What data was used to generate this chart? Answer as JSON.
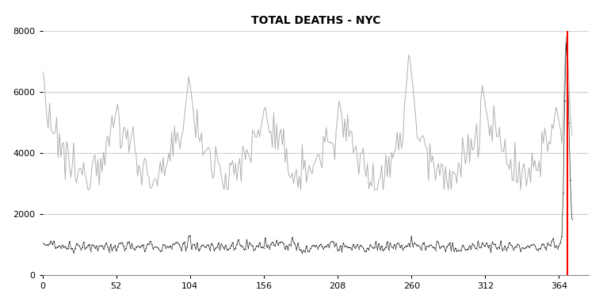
{
  "title": "TOTAL DEATHS - NYC",
  "title_fontsize": 10,
  "title_fontweight": "bold",
  "xlim": [
    0,
    385
  ],
  "ylim": [
    0,
    8000
  ],
  "xticks": [
    0,
    52,
    104,
    156,
    208,
    260,
    312,
    364
  ],
  "yticks": [
    0,
    2000,
    4000,
    6000,
    8000
  ],
  "red_line_x": 370,
  "gray_line_color": "#b0b0b0",
  "black_dot_color": "#222222",
  "background_color": "#ffffff",
  "grid_color": "#d0d0d0",
  "figsize": [
    7.66,
    3.86
  ],
  "dpi": 100,
  "n_weeks": 374,
  "gray_base": 4000,
  "gray_seasonal_amp": 800,
  "gray_noise_std": 350,
  "gray_min": 2800,
  "gray_max": 6800,
  "black_base": 950,
  "black_noise_std": 80,
  "black_min": 700,
  "black_max": 1350,
  "spike_start": 366,
  "spike_peak_week": 369,
  "spike_gray_peak": 7800,
  "spike_black_peak": 7600
}
